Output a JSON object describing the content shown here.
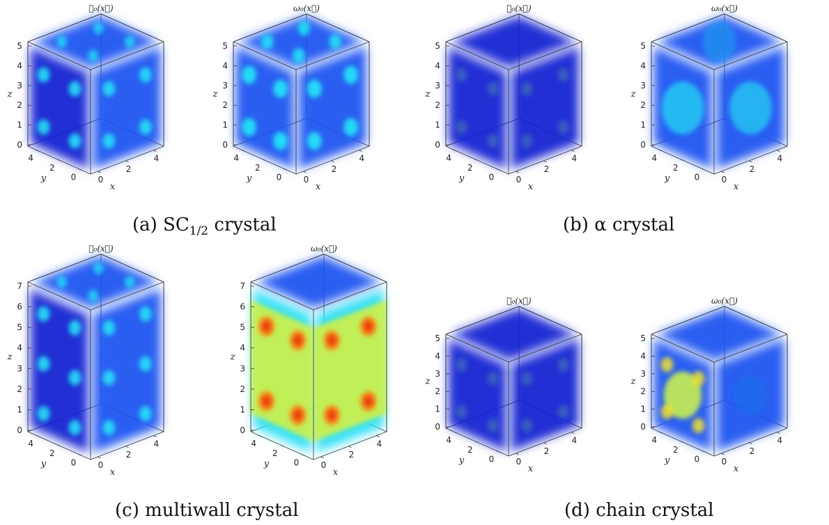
{
  "captions": {
    "a": {
      "prefix": "(a) SC",
      "sub": "1/2",
      "suffix": " crystal"
    },
    "b": "(b) α crystal",
    "c": "(c) multiwall crystal",
    "d": "(d) chain crystal"
  },
  "plots": [
    {
      "id": "a1",
      "title": "𝓑₀(x⃗)",
      "z_ticks": [
        "0",
        "1",
        "2",
        "3",
        "4",
        "5"
      ],
      "y_ticks": [
        "0",
        "2",
        "4"
      ],
      "x_ticks": [
        "0",
        "2",
        "4"
      ],
      "x_label": "x",
      "y_label": "y",
      "z_label": "z",
      "style": "pattern-baryon"
    },
    {
      "id": "a2",
      "title": "ω₀(x⃗)",
      "z_ticks": [
        "0",
        "1",
        "2",
        "3",
        "4",
        "5"
      ],
      "y_ticks": [
        "0",
        "2",
        "4"
      ],
      "x_ticks": [
        "0",
        "2",
        "4"
      ],
      "x_label": "x",
      "y_label": "y",
      "z_label": "z",
      "style": "pattern-omega"
    },
    {
      "id": "b1",
      "title": "𝓑₀(x⃗)",
      "z_ticks": [
        "0",
        "1",
        "2",
        "3",
        "4",
        "5"
      ],
      "y_ticks": [
        "0",
        "2",
        "4"
      ],
      "x_ticks": [
        "0",
        "2",
        "4"
      ],
      "x_label": "x",
      "y_label": "y",
      "z_label": "z",
      "style": "dark"
    },
    {
      "id": "b2",
      "title": "ω₀(x⃗)",
      "z_ticks": [
        "0",
        "1",
        "2",
        "3",
        "4",
        "5"
      ],
      "y_ticks": [
        "0",
        "2",
        "4"
      ],
      "x_ticks": [
        "0",
        "2",
        "4"
      ],
      "x_label": "x",
      "y_label": "y",
      "z_label": "z",
      "style": "bright-cube"
    },
    {
      "id": "c1",
      "title": "𝓑₀(x⃗)",
      "z_ticks": [
        "0",
        "1",
        "2",
        "3",
        "4",
        "5",
        "6",
        "7"
      ],
      "y_ticks": [
        "0",
        "2",
        "4"
      ],
      "x_ticks": [
        "0",
        "2",
        "4"
      ],
      "x_label": "x",
      "y_label": "y",
      "z_label": "z",
      "style": "pattern-baryon"
    },
    {
      "id": "c2",
      "title": "ω₀(x⃗)",
      "z_ticks": [
        "0",
        "1",
        "2",
        "3",
        "4",
        "5",
        "6",
        "7"
      ],
      "y_ticks": [
        "0",
        "2",
        "4"
      ],
      "x_ticks": [
        "0",
        "2",
        "4"
      ],
      "x_label": "x",
      "y_label": "y",
      "z_label": "z",
      "style": "hot-cube"
    },
    {
      "id": "d1",
      "title": "𝓑₀(x⃗)",
      "z_ticks": [
        "0",
        "1",
        "2",
        "3",
        "4",
        "5"
      ],
      "y_ticks": [
        "0",
        "2",
        "4"
      ],
      "x_ticks": [
        "0",
        "2",
        "4"
      ],
      "x_label": "x",
      "y_label": "y",
      "z_label": "z",
      "style": "dark"
    },
    {
      "id": "d2",
      "title": "ω₀(x⃗)",
      "z_ticks": [
        "0",
        "1",
        "2",
        "3",
        "4",
        "5"
      ],
      "y_ticks": [
        "0",
        "2",
        "4"
      ],
      "x_ticks": [
        "0",
        "2",
        "4"
      ],
      "x_label": "x",
      "y_label": "y",
      "z_label": "z",
      "style": "yellow-face"
    }
  ],
  "colors": {
    "deep_blue": "#0a1fd0",
    "blue": "#1450f0",
    "cyan": "#22e0f5",
    "green_yellow": "#c8f050",
    "yellow": "#ffea20",
    "orange": "#ff7a10",
    "red": "#e03010"
  }
}
